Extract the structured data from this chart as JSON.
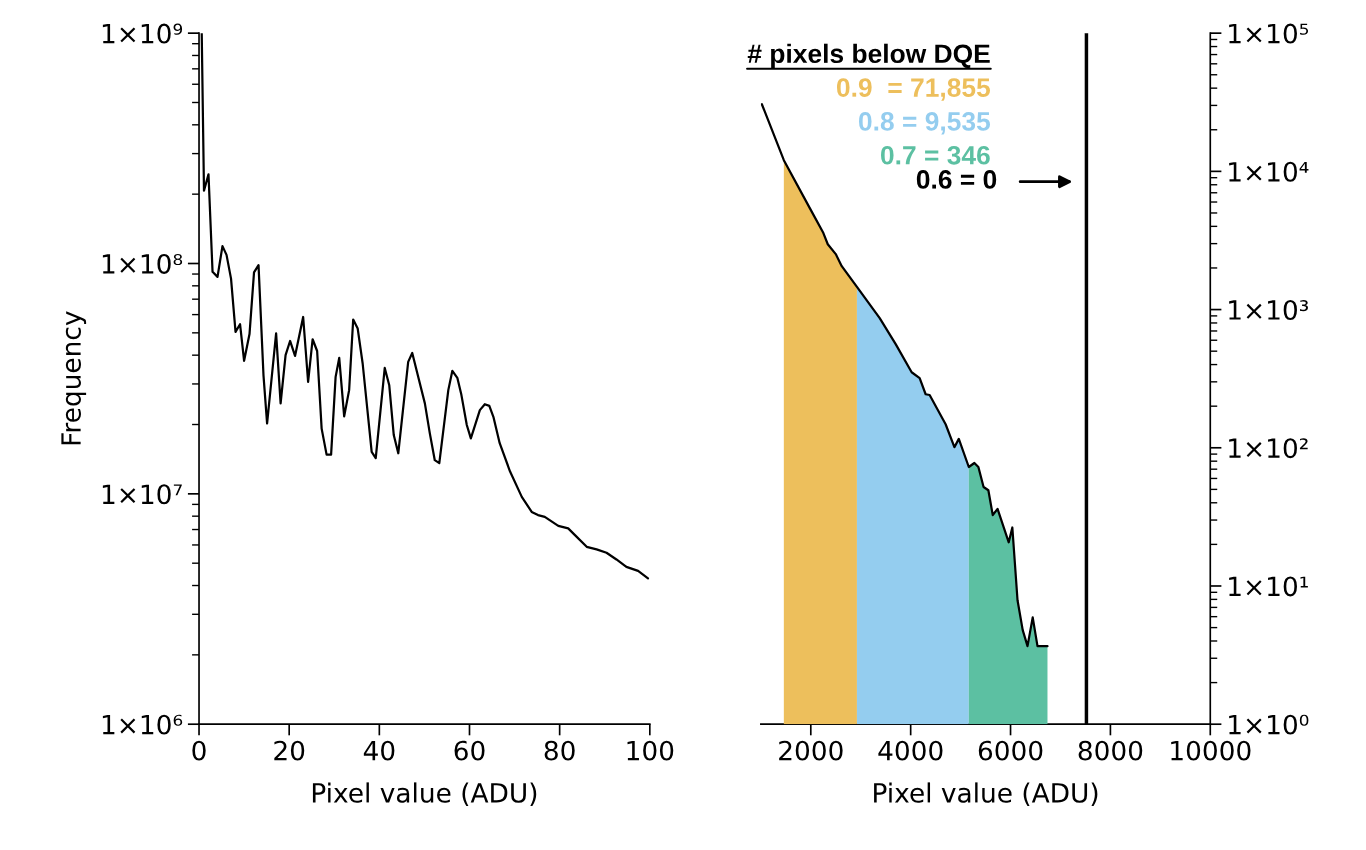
{
  "chart_data": [
    {
      "type": "line",
      "xlabel": "Pixel value (ADU)",
      "ylabel": "Frequency",
      "log": "y",
      "xlim": [
        0,
        100
      ],
      "xticks": [
        0,
        20,
        40,
        60,
        80,
        100
      ],
      "ylim": [
        1000000,
        1000000000
      ],
      "yticks": [
        {
          "value": 1000000,
          "label": "1×10⁶"
        },
        {
          "value": 10000000,
          "label": "1×10⁷"
        },
        {
          "value": 100000000,
          "label": "1×10⁸"
        },
        {
          "value": 1000000000,
          "label": "1×10⁹"
        }
      ],
      "series": [
        {
          "color": "#000000",
          "x": [
            0.6,
            1.1,
            2.1,
            3.0,
            4.1,
            5.2,
            6.1,
            7.1,
            8.1,
            9.1,
            10.0,
            11.2,
            12.2,
            13.2,
            14.3,
            15.1,
            17.1,
            18.1,
            19.2,
            20.2,
            21.3,
            23.1,
            24.2,
            25.2,
            26.2,
            27.2,
            28.3,
            29.3,
            30.3,
            31.1,
            32.2,
            33.3,
            34.2,
            35.2,
            36.3,
            38.3,
            39.2,
            41.2,
            42.2,
            43.2,
            44.2,
            46.4,
            47.3,
            50.1,
            51.2,
            52.3,
            53.3,
            55.3,
            56.2,
            57.3,
            58.2,
            59.4,
            60.3,
            62.3,
            63.4,
            64.4,
            65.3,
            66.7,
            69.0,
            71.6,
            73.8,
            75.2,
            76.7,
            79.7,
            81.9,
            83.4,
            86.0,
            88.2,
            90.4,
            92.6,
            94.8,
            97.4,
            99.6
          ],
          "values": [
            1000000000,
            207000000,
            244000000,
            92000000,
            87500000,
            119000000,
            109000000,
            86000000,
            50500000,
            54500000,
            37800000,
            49400000,
            91500000,
            98400000,
            32700000,
            20200000,
            49700000,
            24700000,
            40000000,
            46100000,
            39700000,
            58600000,
            30600000,
            46900000,
            41700000,
            19200000,
            14800000,
            14800000,
            32200000,
            38900000,
            21700000,
            28200000,
            57100000,
            52200000,
            36800000,
            15200000,
            14300000,
            35200000,
            29600000,
            18000000,
            15000000,
            37400000,
            40900000,
            24700000,
            18300000,
            14000000,
            13600000,
            28200000,
            34200000,
            31900000,
            26900000,
            19900000,
            17400000,
            23100000,
            24500000,
            24100000,
            21600000,
            16600000,
            12500000,
            9700000,
            8350000,
            8090000,
            7950000,
            7260000,
            7080000,
            6620000,
            5890000,
            5740000,
            5550000,
            5190000,
            4820000,
            4630000,
            4300000
          ]
        }
      ]
    },
    {
      "type": "area",
      "xlabel": "Pixel value (ADU)",
      "log": "y2",
      "xlim": [
        1000,
        10000
      ],
      "xticks": [
        2000,
        4000,
        6000,
        8000,
        10000
      ],
      "y2lim": [
        1,
        100000
      ],
      "y2ticks": [
        {
          "value": 1,
          "label": "1×10⁰"
        },
        {
          "value": 10,
          "label": "1×10¹"
        },
        {
          "value": 100,
          "label": "1×10²"
        },
        {
          "value": 1000,
          "label": "1×10³"
        },
        {
          "value": 10000,
          "label": "1×10⁴"
        },
        {
          "value": 100000,
          "label": "1×10⁵"
        }
      ],
      "legend": "top",
      "legend_title": "# pixels below DQE",
      "series": [
        {
          "name": "0.9  = 71,855",
          "color": "#edbf5c",
          "axis": "y2",
          "x": [
            1460,
            1980,
            2244,
            2340,
            2500,
            2620,
            2924
          ],
          "values": [
            12050,
            5420,
            3630,
            2970,
            2520,
            2060,
            1459
          ]
        },
        {
          "name": "0.8 = 9,535",
          "color": "#94cdef",
          "axis": "y2",
          "x": [
            2924,
            3380,
            3700,
            4020,
            4180,
            4300,
            4380,
            4700,
            4876,
            4964,
            5164
          ],
          "values": [
            1459,
            867,
            562,
            352,
            319,
            244,
            241,
            148,
            101,
            116,
            72.6
          ]
        },
        {
          "name": "0.7 = 346",
          "color": "#5cc0a2",
          "axis": "y2",
          "x": [
            5164,
            5276,
            5356,
            5460,
            5556,
            5644,
            5740,
            5964,
            6036,
            6140,
            6244,
            6340,
            6444,
            6540,
            6740
          ],
          "values": [
            72.6,
            77.6,
            72.6,
            52,
            49.3,
            32.6,
            36.1,
            20.7,
            26.5,
            7.89,
            4.79,
            3.67,
            5.93,
            3.67,
            3.67
          ]
        },
        {
          "type": "line",
          "color": "#000000",
          "axis": "y2",
          "x": [
            1020,
            1460,
            1980,
            2244,
            2340,
            2500,
            2620,
            2924,
            3380,
            3700,
            4020,
            4180,
            4300,
            4380,
            4700,
            4876,
            4964,
            5164,
            5276,
            5356,
            5460,
            5556,
            5644,
            5740,
            5964,
            6036,
            6140,
            6244,
            6340,
            6444,
            6540,
            6740
          ],
          "values": [
            30600,
            12050,
            5420,
            3630,
            2970,
            2520,
            2060,
            1459,
            867,
            562,
            352,
            319,
            244,
            241,
            148,
            101,
            116,
            72.6,
            77.6,
            72.6,
            52,
            49.3,
            32.6,
            36.1,
            20.7,
            26.5,
            7.89,
            4.79,
            3.67,
            5.93,
            3.67,
            3.67
          ]
        }
      ],
      "ref_lines": [
        {
          "axis": "x",
          "value": 7520,
          "color": "#000000"
        }
      ],
      "annotations": [
        "0.6 = 0"
      ]
    }
  ]
}
